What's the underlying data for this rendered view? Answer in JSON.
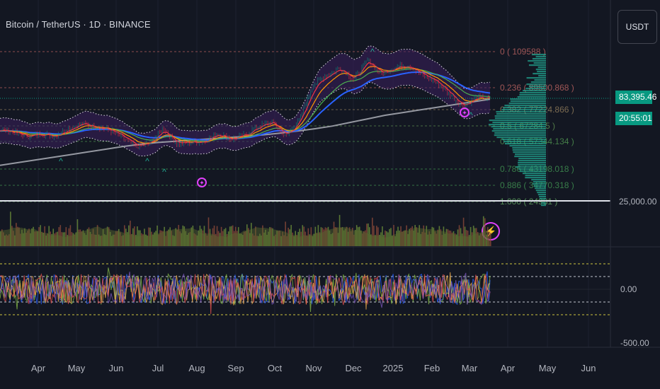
{
  "header": {
    "title": "Bitcoin / TetherUS · 1D · BINANCE",
    "currency_button": "USDT"
  },
  "price_scale": {
    "last_price": "83,395.46",
    "countdown": "20:55:01",
    "level_label": "25,000.00",
    "osc_zero_label": "0.00",
    "osc_bottom_label": "-500.00"
  },
  "colors": {
    "background": "#131722",
    "up": "#089981",
    "profile": "#22ab94",
    "sma200": "#9598a1",
    "ema_blue": "#2962ff",
    "ema_green": "#4caf50",
    "ema_orange": "#ff9800",
    "ema_red": "#f23645",
    "band": "#ffffff",
    "band_fill": "#3b1f5c",
    "signal": "#e040fb"
  },
  "chart_data": {
    "type": "line",
    "title": "Bitcoin / TetherUS · 1D · BINANCE",
    "x_tick_labels": [
      "Apr",
      "May",
      "Jun",
      "Jul",
      "Aug",
      "Sep",
      "Oct",
      "Nov",
      "Dec",
      "2025",
      "Feb",
      "Mar",
      "Apr",
      "May",
      "Jun"
    ],
    "last_price": 83395.46,
    "fib_levels": [
      {
        "label": "0 ( 109588 )",
        "ratio": 0,
        "value": 109588
      },
      {
        "label": "0.236 ( 89500.868 )",
        "ratio": 0.236,
        "value": 89500.868
      },
      {
        "label": "0.382 ( 77224.866 )",
        "ratio": 0.382,
        "value": 77224.866
      },
      {
        "label": "0.5 ( 67284.5 )",
        "ratio": 0.5,
        "value": 67284.5
      },
      {
        "label": "0.618 ( 57344.134 )",
        "ratio": 0.618,
        "value": 57344.134
      },
      {
        "label": "0.786 ( 43198.018 )",
        "ratio": 0.786,
        "value": 43198.018
      },
      {
        "label": "0.886 ( 34770.318 )",
        "ratio": 0.886,
        "value": 34770.318
      },
      {
        "label": "1.000 ( 24981 )",
        "ratio": 1.0,
        "value": 24981
      }
    ],
    "close_path": [
      66000,
      64500,
      62000,
      63800,
      62500,
      66500,
      69500,
      67600,
      66000,
      61500,
      56200,
      58500,
      66500,
      58000,
      59000,
      59500,
      64000,
      60500,
      63000,
      68000,
      70200,
      62000,
      72000,
      91000,
      96500,
      100500,
      94000,
      105000,
      97000,
      101000,
      102000,
      96500,
      93000,
      86000,
      79000,
      84000,
      83395
    ],
    "sma200_path": [
      46000,
      47500,
      49000,
      50500,
      52000,
      53500,
      55000,
      56500,
      57800,
      58800,
      59500,
      60200,
      60800,
      61500,
      62200,
      63000,
      64000,
      65200,
      66500,
      68000,
      70000,
      72000,
      74000,
      75500,
      77000,
      78500,
      80000,
      81500,
      83000
    ],
    "oscillator_levels": [
      300,
      150,
      0,
      -150,
      -300
    ]
  }
}
